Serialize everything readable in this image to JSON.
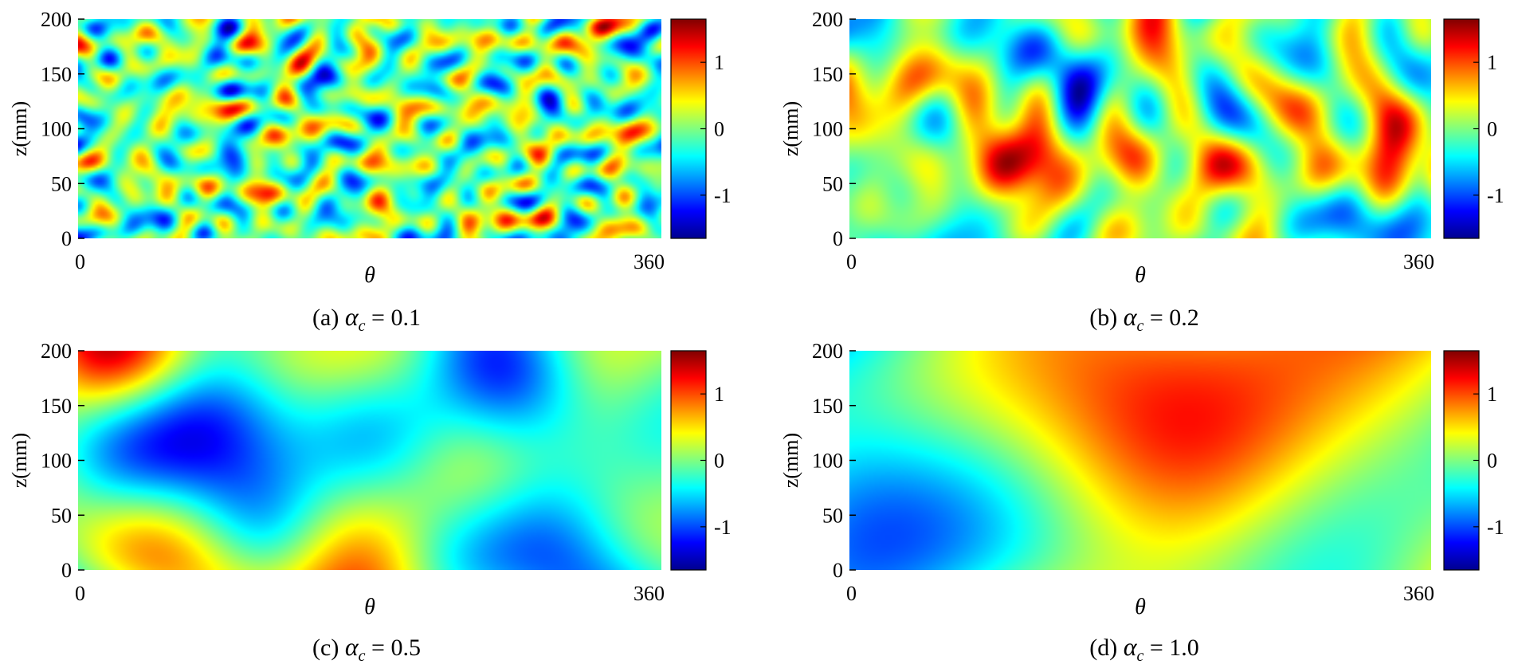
{
  "chart_data": [
    {
      "type": "heatmap",
      "caption": "(a)",
      "alpha_value": "0.1",
      "xlabel": "θ",
      "ylabel": "z(mm)",
      "xlim": [
        0,
        360
      ],
      "ylim": [
        0,
        200
      ],
      "x_ticks": [
        "0",
        "360"
      ],
      "y_ticks": [
        "0",
        "50",
        "100",
        "150",
        "200"
      ],
      "colorbar": {
        "ticks": [
          "1",
          "0",
          "-1"
        ],
        "range": [
          -1.65,
          1.65
        ],
        "colormap": "jet"
      },
      "field": {
        "correlation_length": 0.1,
        "amplitude_range": [
          -1.6,
          1.6
        ]
      }
    },
    {
      "type": "heatmap",
      "caption": "(b)",
      "alpha_value": "0.2",
      "xlabel": "θ",
      "ylabel": "z(mm)",
      "xlim": [
        0,
        360
      ],
      "ylim": [
        0,
        200
      ],
      "x_ticks": [
        "0",
        "360"
      ],
      "y_ticks": [
        "0",
        "50",
        "100",
        "150",
        "200"
      ],
      "colorbar": {
        "ticks": [
          "1",
          "0",
          "-1"
        ],
        "range": [
          -1.65,
          1.65
        ],
        "colormap": "jet"
      },
      "field": {
        "correlation_length": 0.2,
        "amplitude_range": [
          -1.6,
          1.6
        ]
      }
    },
    {
      "type": "heatmap",
      "caption": "(c)",
      "alpha_value": "0.5",
      "xlabel": "θ",
      "ylabel": "z(mm)",
      "xlim": [
        0,
        360
      ],
      "ylim": [
        0,
        200
      ],
      "x_ticks": [
        "0",
        "360"
      ],
      "y_ticks": [
        "0",
        "50",
        "100",
        "150",
        "200"
      ],
      "colorbar": {
        "ticks": [
          "1",
          "0",
          "-1"
        ],
        "range": [
          -1.65,
          1.65
        ],
        "colormap": "jet"
      },
      "field": {
        "correlation_length": 0.5,
        "amplitude_range": [
          -1.3,
          1.4
        ]
      }
    },
    {
      "type": "heatmap",
      "caption": "(d)",
      "alpha_value": "1.0",
      "xlabel": "θ",
      "ylabel": "z(mm)",
      "xlim": [
        0,
        360
      ],
      "ylim": [
        0,
        200
      ],
      "x_ticks": [
        "0",
        "360"
      ],
      "y_ticks": [
        "0",
        "50",
        "100",
        "150",
        "200"
      ],
      "colorbar": {
        "ticks": [
          "1",
          "0",
          "-1"
        ],
        "range": [
          -1.65,
          1.65
        ],
        "colormap": "jet"
      },
      "field": {
        "correlation_length": 1.0,
        "amplitude_range": [
          -1.0,
          1.2
        ]
      }
    }
  ]
}
